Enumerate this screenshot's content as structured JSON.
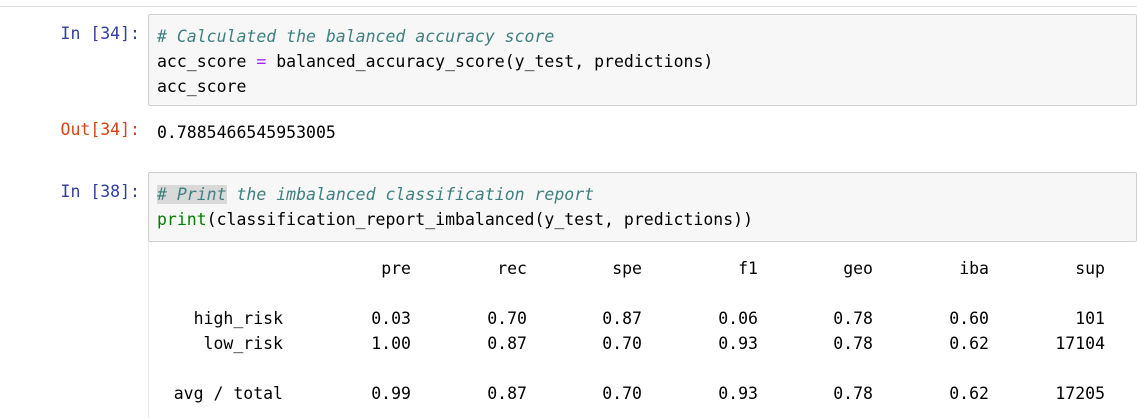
{
  "cell1": {
    "prompt": "In [34]:",
    "comment": "# Calculated the balanced accuracy score",
    "line2_var": "acc_score",
    "line2_op": "=",
    "line2_call": "balanced_accuracy_score(y_test, predictions)",
    "line3": "acc_score",
    "out_prompt": "Out[34]:",
    "out_value": "0.7885466545953005"
  },
  "cell2": {
    "prompt": "In [38]:",
    "comment_sel": "# Print",
    "comment_rest": " the imbalanced classification report",
    "builtin": "print",
    "call": "(classification_report_imbalanced(y_test, predictions))"
  },
  "report": {
    "columns": [
      "pre",
      "rec",
      "spe",
      "f1",
      "geo",
      "iba",
      "sup"
    ],
    "rows": [
      {
        "label": "high_risk",
        "values": [
          "0.03",
          "0.70",
          "0.87",
          "0.06",
          "0.78",
          "0.60",
          "101"
        ]
      },
      {
        "label": "low_risk",
        "values": [
          "1.00",
          "0.87",
          "0.70",
          "0.93",
          "0.78",
          "0.62",
          "17104"
        ]
      },
      {
        "label": "avg / total",
        "values": [
          "0.99",
          "0.87",
          "0.70",
          "0.93",
          "0.78",
          "0.62",
          "17205"
        ]
      }
    ]
  }
}
